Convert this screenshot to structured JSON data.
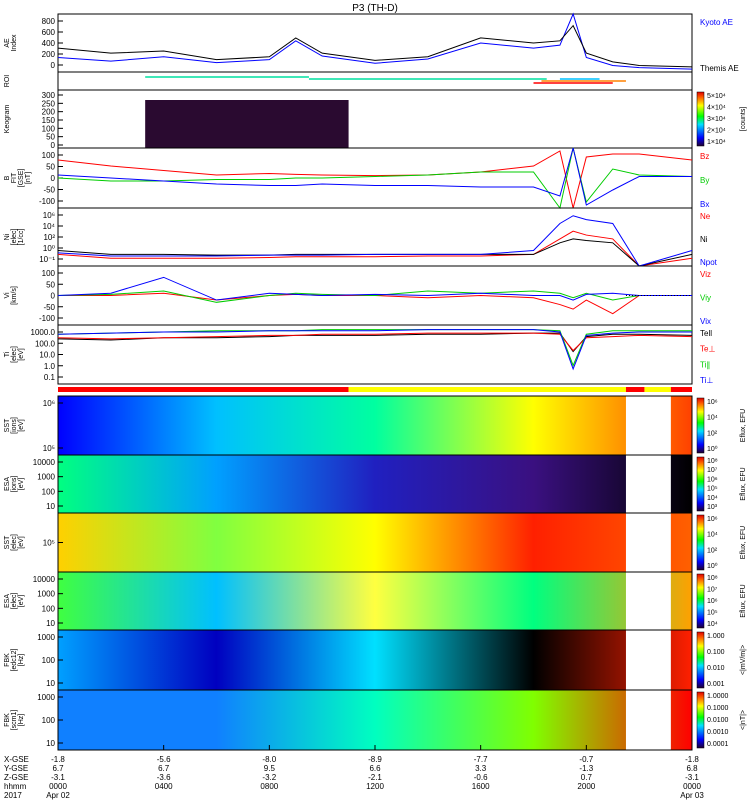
{
  "title": "P3 (TH-D)",
  "chart_data": {
    "type": "line",
    "time_hours": [
      0,
      2,
      4,
      6,
      8,
      9,
      10,
      12,
      14,
      16,
      18,
      19,
      19.5,
      20,
      21,
      22,
      24
    ],
    "panels": [
      {
        "id": "ae",
        "ylabel": "AE Index",
        "yticks": [
          "800",
          "600",
          "400",
          "200",
          "0"
        ],
        "ylim": [
          0,
          800
        ],
        "series": [
          {
            "name": "Kyoto AE",
            "color": "#0000ff",
            "values": [
              200,
              150,
              210,
              130,
              170,
              430,
              220,
              120,
              180,
              400,
              330,
              370,
              800,
              200,
              90,
              60,
              40
            ]
          },
          {
            "name": "Themis AE",
            "color": "#000000",
            "values": [
              330,
              260,
              290,
              170,
              210,
              470,
              260,
              160,
              210,
              470,
              400,
              430,
              640,
              260,
              140,
              90,
              70
            ]
          }
        ]
      },
      {
        "id": "roi",
        "ylabel": "ROI"
      },
      {
        "id": "keogram",
        "ylabel": "Keogram",
        "yticks": [
          "300",
          "250",
          "200",
          "150",
          "100",
          "50",
          "0"
        ],
        "colorbar": [
          "5×10⁴",
          "4×10⁴",
          "3×10⁴",
          "2×10⁴",
          "1×10⁴"
        ],
        "colorbar_label": "[counts]"
      },
      {
        "id": "bfit",
        "ylabel": "B FIT [GSE] [nT]",
        "yticks": [
          "100",
          "50",
          "0",
          "-50",
          "-100"
        ],
        "ylim": [
          -100,
          100
        ],
        "series": [
          {
            "name": "Bz",
            "color": "#ff0000",
            "values": [
              60,
              40,
              25,
              10,
              15,
              12,
              10,
              8,
              10,
              20,
              40,
              90,
              -100,
              70,
              80,
              80,
              60
            ]
          },
          {
            "name": "By",
            "color": "#00cc00",
            "values": [
              0,
              -10,
              -10,
              -5,
              -5,
              0,
              0,
              5,
              10,
              20,
              20,
              -100,
              100,
              -80,
              30,
              10,
              5
            ]
          },
          {
            "name": "Bx",
            "color": "#0000ff",
            "values": [
              10,
              0,
              -10,
              -20,
              -25,
              -25,
              -20,
              -25,
              -25,
              -30,
              -30,
              -60,
              100,
              -90,
              -40,
              5,
              5
            ]
          }
        ]
      },
      {
        "id": "ni",
        "ylabel": "Ni [elec] [1/cc]",
        "yticks": [
          "10⁶",
          "10⁴",
          "10²",
          "10⁰",
          "10⁻¹"
        ],
        "ylim": [
          -1.5,
          6
        ],
        "series": [
          {
            "name": "Ne",
            "color": "#ff0000",
            "values": [
              0,
              -0.5,
              -0.5,
              -0.5,
              -0.4,
              -0.3,
              -0.3,
              -0.3,
              -0.2,
              -0.2,
              0,
              2,
              3,
              2.5,
              2,
              -1.5,
              -0.5
            ]
          },
          {
            "name": "Ni",
            "color": "#000000",
            "values": [
              0.5,
              0,
              0,
              -0.1,
              -0.1,
              0,
              0,
              0,
              0,
              0,
              0,
              1.5,
              2,
              1.8,
              1.5,
              -1.5,
              0
            ]
          },
          {
            "name": "Npot",
            "color": "#0000ff",
            "values": [
              0.2,
              -0.2,
              -0.2,
              -0.2,
              -0.1,
              -0.1,
              -0.1,
              0,
              0,
              0,
              0.5,
              4,
              5,
              4.5,
              4,
              -1.5,
              0.5
            ]
          }
        ]
      },
      {
        "id": "vi",
        "ylabel": "Vi [km/s]",
        "yticks": [
          "100",
          "50",
          "0",
          "-50",
          "-100"
        ],
        "ylim": [
          -130,
          130
        ],
        "series": [
          {
            "name": "Viz",
            "color": "#ff0000",
            "values": [
              0,
              0,
              10,
              -20,
              0,
              5,
              0,
              0,
              -10,
              0,
              -10,
              -40,
              -60,
              -20,
              -80,
              0,
              0
            ]
          },
          {
            "name": "Viy",
            "color": "#00cc00",
            "values": [
              0,
              5,
              20,
              -30,
              0,
              10,
              5,
              0,
              20,
              10,
              20,
              10,
              -10,
              10,
              -20,
              0,
              0
            ]
          },
          {
            "name": "Vix",
            "color": "#0000ff",
            "values": [
              0,
              10,
              80,
              -20,
              10,
              5,
              0,
              5,
              0,
              10,
              0,
              0,
              -20,
              5,
              10,
              0,
              0
            ]
          }
        ]
      },
      {
        "id": "ti",
        "ylabel": "Ti [elec] [eV]",
        "yticks": [
          "1000.0",
          "100.0",
          "10.0",
          "1.0",
          "0.1"
        ],
        "ylim": [
          -1.3,
          3.8
        ],
        "series": [
          {
            "name": "Tell",
            "color": "#000000",
            "values": [
              2.6,
              2.5,
              2.7,
              2.7,
              2.8,
              2.9,
              2.9,
              2.9,
              3,
              3,
              3.1,
              3.1,
              1.5,
              2.8,
              3,
              3,
              2.9
            ]
          },
          {
            "name": "Te⊥",
            "color": "#ff0000",
            "values": [
              2.7,
              2.6,
              2.7,
              2.8,
              2.9,
              2.9,
              3,
              3,
              3.1,
              3.1,
              3.1,
              3,
              1.6,
              2.7,
              2.8,
              2.9,
              2.8
            ]
          },
          {
            "name": "Ti∥",
            "color": "#00cc00",
            "values": [
              3,
              3.1,
              3.2,
              3.3,
              3.3,
              3.3,
              3.4,
              3.4,
              3.4,
              3.4,
              3.4,
              3.3,
              0.3,
              3,
              3.3,
              3.3,
              3.3
            ]
          },
          {
            "name": "Ti⊥",
            "color": "#0000ff",
            "values": [
              3,
              3.1,
              3.2,
              3.2,
              3.3,
              3.3,
              3.3,
              3.3,
              3.4,
              3.4,
              3.4,
              3.2,
              0,
              2.9,
              3.1,
              3.2,
              3.2
            ]
          }
        ]
      },
      {
        "id": "sst_ion",
        "ylabel": "SST [ions] [eV]",
        "yticks": [
          "10⁶",
          "10⁵"
        ],
        "colorbar": [
          "10⁶",
          "10⁴",
          "10²",
          "10⁰"
        ],
        "colorbar_label": "Eflux, EFU"
      },
      {
        "id": "esa_ion",
        "ylabel": "ESA [ions] [eV]",
        "yticks": [
          "10000",
          "1000",
          "100",
          "10"
        ],
        "colorbar": [
          "10⁸",
          "10⁷",
          "10⁶",
          "10⁵",
          "10⁴",
          "10³"
        ],
        "colorbar_label": "Eflux, EFU"
      },
      {
        "id": "sst_elec",
        "ylabel": "SST [elec] [eV]",
        "yticks": [
          "10⁵"
        ],
        "colorbar": [
          "10⁶",
          "10⁴",
          "10²",
          "10⁰"
        ],
        "colorbar_label": "Eflux, EFU"
      },
      {
        "id": "esa_elec",
        "ylabel": "ESA [elec] [eV]",
        "yticks": [
          "10000",
          "1000",
          "100",
          "10"
        ],
        "colorbar": [
          "10⁸",
          "10⁷",
          "10⁶",
          "10⁵",
          "10⁴"
        ],
        "colorbar_label": "Eflux, EFU"
      },
      {
        "id": "fbk_edc",
        "ylabel": "FBK [edc12] [Hz]",
        "yticks": [
          "1000",
          "100",
          "10"
        ],
        "colorbar": [
          "1.000",
          "0.100",
          "0.010",
          "0.001"
        ],
        "colorbar_label": "<|mV/m|>"
      },
      {
        "id": "fbk_scm",
        "ylabel": "FBK [scm1] [Hz]",
        "yticks": [
          "1000",
          "100",
          "10"
        ],
        "colorbar": [
          "1.0000",
          "0.1000",
          "0.0100",
          "0.0010",
          "0.0001"
        ],
        "colorbar_label": "<|nT|>"
      }
    ],
    "xaxis": {
      "row_labels": [
        "X-GSE",
        "Y-GSE",
        "Z-GSE",
        "hhmm",
        "2017"
      ],
      "ticks": [
        {
          "x": "-1.8",
          "y": "6.7",
          "z": "-3.1",
          "hhmm": "0000",
          "date": "Apr 02"
        },
        {
          "x": "-5.6",
          "y": "6.7",
          "z": "-3.6",
          "hhmm": "0400",
          "date": ""
        },
        {
          "x": "-8.0",
          "y": "9.5",
          "z": "-3.2",
          "hhmm": "0800",
          "date": ""
        },
        {
          "x": "-8.9",
          "y": "6.6",
          "z": "-2.1",
          "hhmm": "1200",
          "date": ""
        },
        {
          "x": "-7.7",
          "y": "3.3",
          "z": "-0.6",
          "hhmm": "1600",
          "date": ""
        },
        {
          "x": "-0.7",
          "y": "-1.3",
          "z": "0.7",
          "hhmm": "2000",
          "date": ""
        },
        {
          "x": "-1.8",
          "y": "6.8",
          "z": "-3.1",
          "hhmm": "0000",
          "date": "Apr 03"
        }
      ]
    }
  }
}
